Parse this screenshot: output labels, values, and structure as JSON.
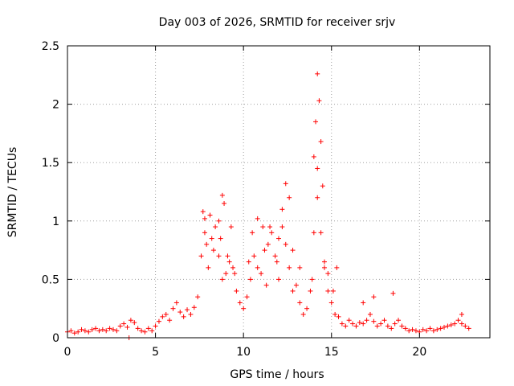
{
  "chart_data": {
    "type": "scatter",
    "title": "Day 003 of 2026, SRMTID for receiver srjv",
    "xlabel": "GPS time / hours",
    "ylabel": "SRMTID / TECUs",
    "xlim": [
      0,
      24
    ],
    "ylim": [
      0,
      2.5
    ],
    "xticks": [
      0,
      5,
      10,
      15,
      20
    ],
    "yticks": [
      0,
      0.5,
      1,
      1.5,
      2,
      2.5
    ],
    "xtick_labels": [
      "0",
      "5",
      "10",
      "15",
      "20"
    ],
    "ytick_labels": [
      "0",
      "0.5",
      "1",
      "1.5",
      "2",
      "2.5"
    ],
    "grid": true,
    "marker": "+",
    "series": [
      {
        "name": "SRMTID",
        "color": "#ff0000",
        "x": [
          0.0,
          0.2,
          0.4,
          0.6,
          0.8,
          1.0,
          1.2,
          1.4,
          1.6,
          1.8,
          2.0,
          2.2,
          2.4,
          2.6,
          2.8,
          3.0,
          3.2,
          3.4,
          3.6,
          3.8,
          4.0,
          4.2,
          4.4,
          4.6,
          4.8,
          5.0,
          5.2,
          5.4,
          5.6,
          5.8,
          6.0,
          6.2,
          6.4,
          6.6,
          6.8,
          7.0,
          7.2,
          7.4,
          7.6,
          7.8,
          8.0,
          8.2,
          8.4,
          8.6,
          8.8,
          9.0,
          9.2,
          9.4,
          9.6,
          9.8,
          10.0,
          10.2,
          10.4,
          10.6,
          10.8,
          11.0,
          11.2,
          11.4,
          11.6,
          11.8,
          12.0,
          12.2,
          12.4,
          12.6,
          12.8,
          13.0,
          13.2,
          13.4,
          13.6,
          13.8,
          14.0,
          14.2,
          14.4,
          14.6,
          14.8,
          15.0,
          15.2,
          15.4,
          15.6,
          15.8,
          16.0,
          16.2,
          16.4,
          16.6,
          16.8,
          17.0,
          17.2,
          17.4,
          17.6,
          17.8,
          18.0,
          18.2,
          18.4,
          18.6,
          18.8,
          19.0,
          19.2,
          19.4,
          19.6,
          19.8,
          20.0,
          20.2,
          20.4,
          20.6,
          20.8,
          21.0,
          21.2,
          21.4,
          21.6,
          21.8,
          22.0,
          22.2,
          22.4,
          22.6,
          22.8,
          7.7,
          7.8,
          8.1,
          8.6,
          8.8,
          8.9,
          9.3,
          10.8,
          12.2,
          12.4,
          12.6,
          14.0,
          14.1,
          14.2,
          14.3,
          14.4,
          14.5,
          14.2,
          15.3,
          16.8,
          17.4,
          18.5,
          22.4,
          3.5,
          7.9,
          8.3,
          8.7,
          9.1,
          11.5,
          11.9,
          12.0,
          12.8,
          13.2,
          13.9,
          14.6,
          14.8,
          15.1,
          9.5,
          10.3,
          10.5,
          11.1,
          11.3
        ],
        "y": [
          0.05,
          0.06,
          0.04,
          0.05,
          0.07,
          0.06,
          0.05,
          0.07,
          0.08,
          0.06,
          0.07,
          0.06,
          0.08,
          0.07,
          0.06,
          0.1,
          0.12,
          0.09,
          0.15,
          0.13,
          0.08,
          0.06,
          0.05,
          0.08,
          0.06,
          0.1,
          0.14,
          0.18,
          0.2,
          0.15,
          0.25,
          0.3,
          0.22,
          0.18,
          0.24,
          0.2,
          0.26,
          0.35,
          0.7,
          0.9,
          0.6,
          0.85,
          0.95,
          0.7,
          0.5,
          0.55,
          0.65,
          0.6,
          0.4,
          0.3,
          0.25,
          0.35,
          0.5,
          0.7,
          0.6,
          0.55,
          0.75,
          0.8,
          0.9,
          0.7,
          0.85,
          0.95,
          0.8,
          0.6,
          0.4,
          0.45,
          0.3,
          0.2,
          0.25,
          0.4,
          0.9,
          1.2,
          0.9,
          0.6,
          0.4,
          0.3,
          0.2,
          0.18,
          0.12,
          0.1,
          0.15,
          0.12,
          0.1,
          0.13,
          0.12,
          0.15,
          0.2,
          0.14,
          0.1,
          0.12,
          0.15,
          0.1,
          0.08,
          0.12,
          0.15,
          0.1,
          0.08,
          0.06,
          0.07,
          0.06,
          0.05,
          0.07,
          0.06,
          0.08,
          0.06,
          0.07,
          0.08,
          0.09,
          0.1,
          0.11,
          0.12,
          0.15,
          0.12,
          0.1,
          0.08,
          1.08,
          1.02,
          1.05,
          1.0,
          1.22,
          1.15,
          0.95,
          1.02,
          1.1,
          1.32,
          1.2,
          1.55,
          1.85,
          2.26,
          2.03,
          1.68,
          1.3,
          1.45,
          0.6,
          0.3,
          0.35,
          0.38,
          0.2,
          0.0,
          0.8,
          0.75,
          0.85,
          0.7,
          0.95,
          0.65,
          0.5,
          0.75,
          0.6,
          0.5,
          0.65,
          0.55,
          0.4,
          0.55,
          0.65,
          0.9,
          0.95,
          0.45
        ]
      }
    ]
  }
}
